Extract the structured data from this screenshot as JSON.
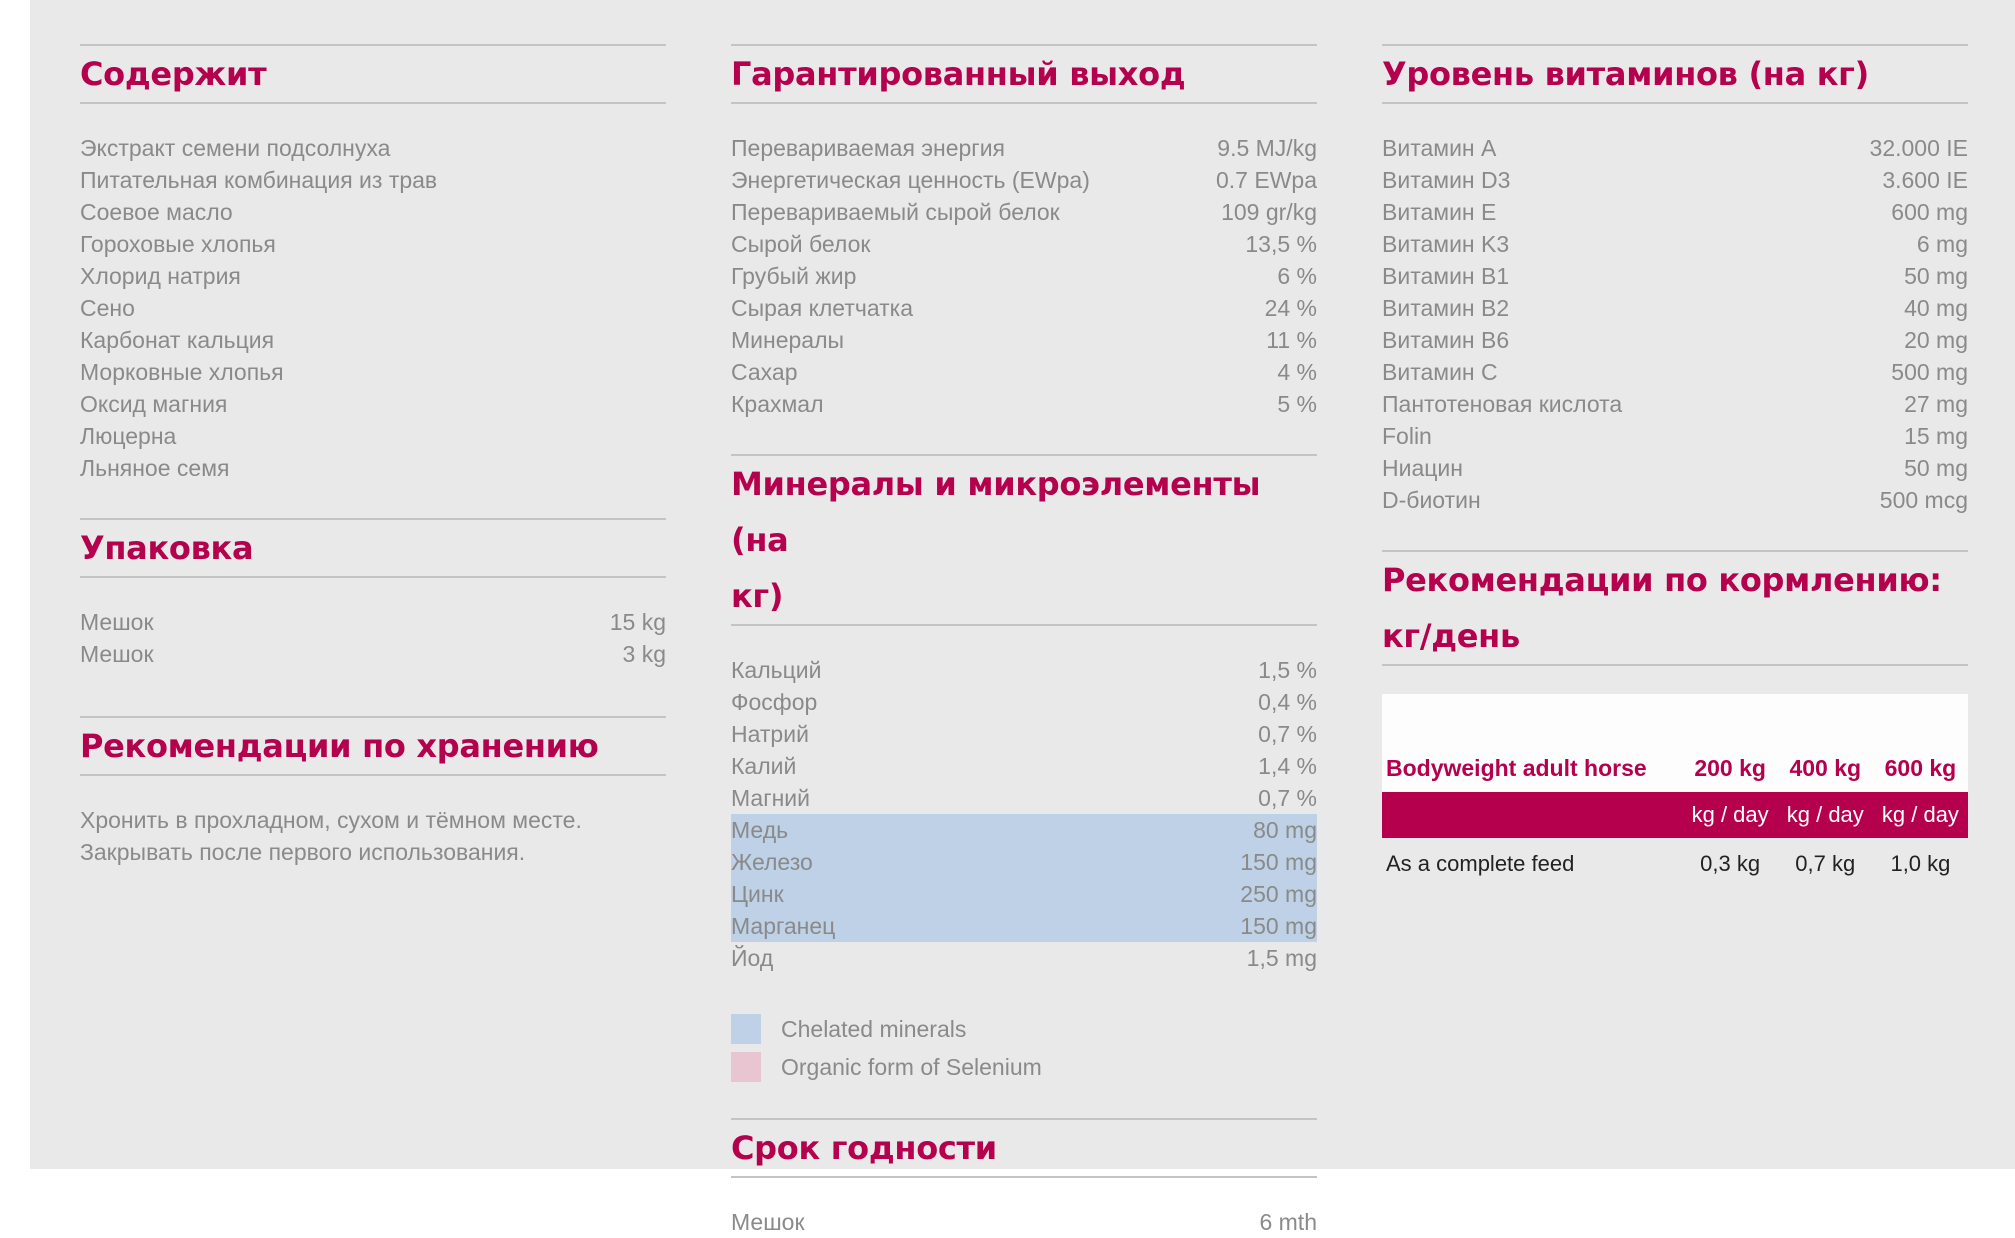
{
  "contains": {
    "title": "Содержит",
    "items": [
      "Экстракт семени подсолнуха",
      "Питательная комбинация из трав",
      "Соевое масло",
      "Гороховые хлопья",
      "Хлорид натрия",
      "Сено",
      "Карбонат кальция",
      "Морковные хлопья",
      "Оксид магния",
      "Люцерна",
      "Льняное семя"
    ]
  },
  "packaging": {
    "title": "Упаковка",
    "items": [
      {
        "name": "Мешок",
        "value": "15 kg"
      },
      {
        "name": "Мешок",
        "value": "3 kg"
      }
    ]
  },
  "storage": {
    "title": "Рекомендации по хранению",
    "lines": [
      "Хронить в прохладном, сухом и тёмном месте.",
      "Закрывать после первого использования."
    ]
  },
  "guaranteed": {
    "title": "Гарантированный выход",
    "items": [
      {
        "name": "Перевариваемая энергия",
        "value": "9.5 MJ/kg"
      },
      {
        "name": "Энергетическая ценность (EWpa)",
        "value": "0.7 EWpa"
      },
      {
        "name": "Перевариваемый сырой белок",
        "value": "109 gr/kg"
      },
      {
        "name": "Сырой белок",
        "value": "13,5 %"
      },
      {
        "name": "Грубый жир",
        "value": "6 %"
      },
      {
        "name": "Сырая клетчатка",
        "value": "24 %"
      },
      {
        "name": "Минералы",
        "value": "11 %"
      },
      {
        "name": "Сахар",
        "value": "4 %"
      },
      {
        "name": "Крахмал",
        "value": "5 %"
      }
    ]
  },
  "minerals": {
    "title_line1": "Минералы и микроэлементы (на",
    "title_line2": "кг)",
    "items": [
      {
        "name": "Кальций",
        "value": "1,5 %",
        "chelated": false
      },
      {
        "name": "Фосфор",
        "value": "0,4 %",
        "chelated": false
      },
      {
        "name": "Натрий",
        "value": "0,7 %",
        "chelated": false
      },
      {
        "name": "Калий",
        "value": "1,4 %",
        "chelated": false
      },
      {
        "name": "Магний",
        "value": "0,7 %",
        "chelated": false
      },
      {
        "name": "Медь",
        "value": "80 mg",
        "chelated": true
      },
      {
        "name": "Железо",
        "value": "150 mg",
        "chelated": true
      },
      {
        "name": "Цинк",
        "value": "250 mg",
        "chelated": true
      },
      {
        "name": "Марганец",
        "value": "150 mg",
        "chelated": true
      },
      {
        "name": "Йод",
        "value": "1,5 mg",
        "chelated": false
      }
    ],
    "legend": {
      "chelated": "Chelated minerals",
      "selenium": "Organic form of Selenium"
    },
    "colors": {
      "chelated": "#bed1e6",
      "selenium": "#e8c5d0",
      "accent": "#b5004e"
    }
  },
  "shelf_life": {
    "title": "Срок годности",
    "items": [
      {
        "name": "Мешок",
        "value": "6 mth"
      }
    ]
  },
  "vitamins": {
    "title": "Уровень витаминов (на кг)",
    "items": [
      {
        "name": "Витамин A",
        "value": "32.000 IE"
      },
      {
        "name": "Витамин D3",
        "value": "3.600 IE"
      },
      {
        "name": "Витамин E",
        "value": "600 mg"
      },
      {
        "name": "Витамин K3",
        "value": "6 mg"
      },
      {
        "name": "Витамин B1",
        "value": "50 mg"
      },
      {
        "name": "Витамин B2",
        "value": "40 mg"
      },
      {
        "name": "Витамин B6",
        "value": "20 mg"
      },
      {
        "name": "Витамин C",
        "value": "500 mg"
      },
      {
        "name": "Пантотеновая кислота",
        "value": "27 mg"
      },
      {
        "name": "Folin",
        "value": "15 mg"
      },
      {
        "name": "Ниацин",
        "value": "50 mg"
      },
      {
        "name": "D-биотин",
        "value": "500 mcg"
      }
    ]
  },
  "feeding": {
    "title_line1": "Рекомендации по кормлению:",
    "title_line2": "кг/день",
    "header": [
      "Bodyweight adult horse",
      "200 kg",
      "400 kg",
      "600 kg"
    ],
    "units": [
      "",
      "kg / day",
      "kg / day",
      "kg / day"
    ],
    "rows": [
      [
        "As a complete feed",
        "0,3 kg",
        "0,7 kg",
        "1,0 kg"
      ]
    ]
  }
}
